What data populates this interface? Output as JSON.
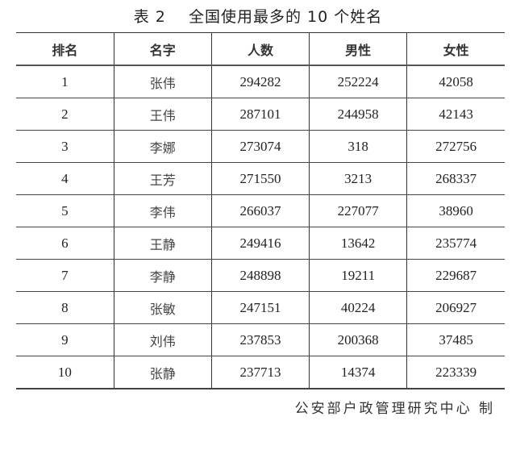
{
  "title": {
    "prefix": "表 2",
    "text": "全国使用最多的 10 个姓名"
  },
  "table": {
    "headers": [
      "排名",
      "名字",
      "人数",
      "男性",
      "女性"
    ],
    "rows": [
      [
        "1",
        "张伟",
        "294282",
        "252224",
        "42058"
      ],
      [
        "2",
        "王伟",
        "287101",
        "244958",
        "42143"
      ],
      [
        "3",
        "李娜",
        "273074",
        "318",
        "272756"
      ],
      [
        "4",
        "王芳",
        "271550",
        "3213",
        "268337"
      ],
      [
        "5",
        "李伟",
        "266037",
        "227077",
        "38960"
      ],
      [
        "6",
        "王静",
        "249416",
        "13642",
        "235774"
      ],
      [
        "7",
        "李静",
        "248898",
        "19211",
        "229687"
      ],
      [
        "8",
        "张敏",
        "247151",
        "40224",
        "206927"
      ],
      [
        "9",
        "刘伟",
        "237853",
        "200368",
        "37485"
      ],
      [
        "10",
        "张静",
        "237713",
        "14374",
        "223339"
      ]
    ]
  },
  "footer": "公安部户政管理研究中心 制"
}
